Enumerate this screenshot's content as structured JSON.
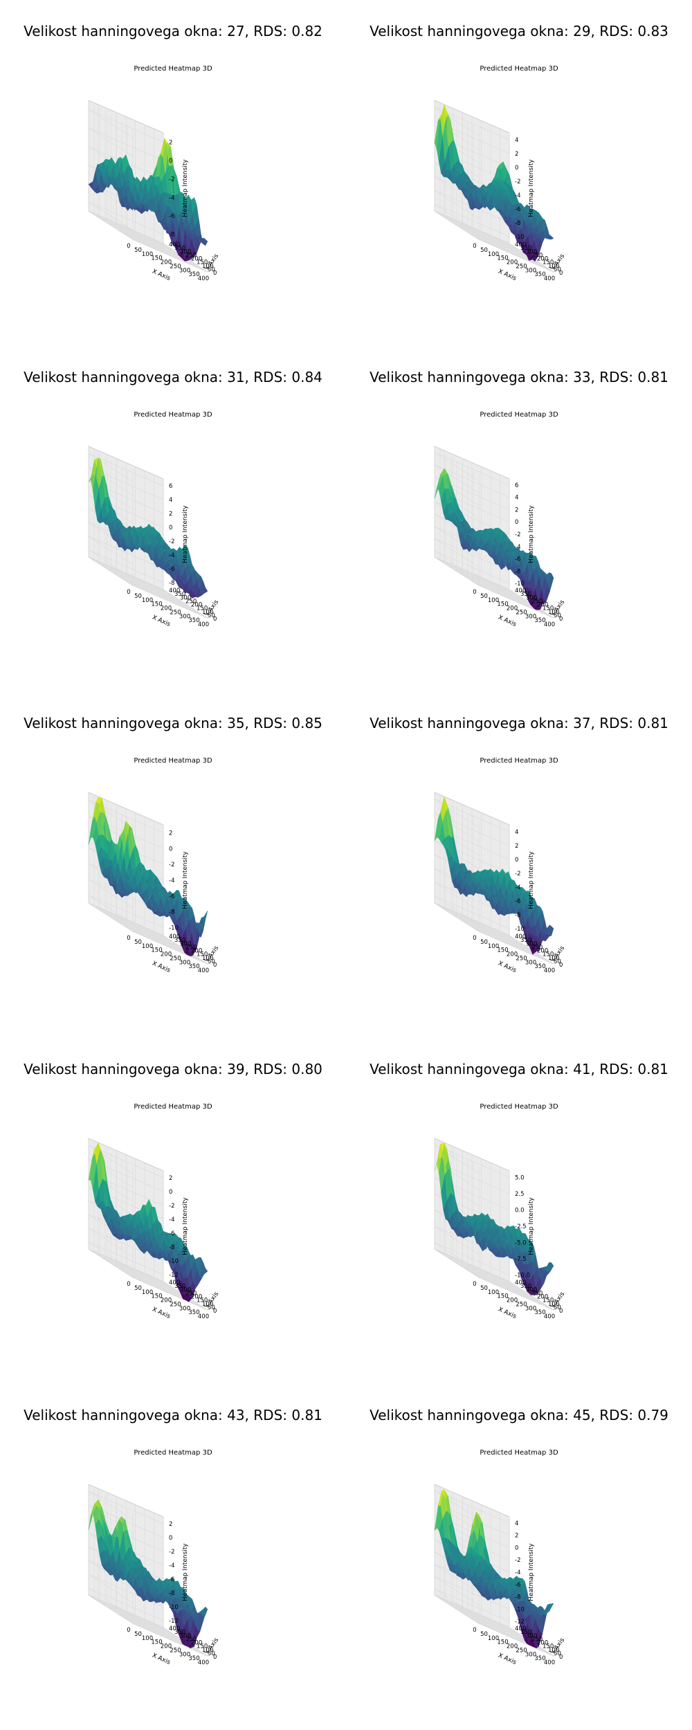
{
  "figure": {
    "panels": [
      {
        "title": "Velikost hanningovega okna: 27, RDS: 0.82"
      },
      {
        "title": "Velikost hanningovega okna: 29, RDS: 0.83"
      },
      {
        "title": "Velikost hanningovega okna: 31, RDS: 0.84"
      },
      {
        "title": "Velikost hanningovega okna: 33, RDS: 0.81"
      },
      {
        "title": "Velikost hanningovega okna: 35, RDS: 0.85"
      },
      {
        "title": "Velikost hanningovega okna: 37, RDS: 0.81"
      },
      {
        "title": "Velikost hanningovega okna: 39, RDS: 0.80"
      },
      {
        "title": "Velikost hanningovega okna: 41, RDS: 0.81"
      },
      {
        "title": "Velikost hanningovega okna: 43, RDS: 0.81"
      },
      {
        "title": "Velikost hanningovega okna: 45, RDS: 0.79"
      }
    ]
  },
  "colors": {
    "colormap": "viridis",
    "pane": "#f2f2f2",
    "grid": "#dcdcdc"
  },
  "chart_data": [
    {
      "type": "surface3d",
      "title": "Predicted Heatmap 3D",
      "xlabel": "X Axis",
      "ylabel": "Y Axis",
      "zlabel": "Heatmap Intensity",
      "xticks": [
        "0",
        "50",
        "100",
        "150",
        "200",
        "250",
        "300",
        "350",
        "400"
      ],
      "yticks": [
        "0",
        "50",
        "100",
        "150",
        "200",
        "250",
        "300",
        "350",
        "400"
      ],
      "zticks": [
        "-8",
        "-6",
        "-4",
        "-2",
        "0",
        "2"
      ],
      "zlim": [
        -9,
        3
      ],
      "peaks": [
        {
          "x": 300,
          "y": 200,
          "z": 2.5
        },
        {
          "x": 150,
          "y": 300,
          "z": -1
        }
      ]
    },
    {
      "type": "surface3d",
      "title": "Predicted Heatmap 3D",
      "xlabel": "X Axis",
      "ylabel": "Y Axis",
      "zlabel": "Heatmap Intensity",
      "xticks": [
        "0",
        "50",
        "100",
        "150",
        "200",
        "250",
        "300",
        "350",
        "400"
      ],
      "yticks": [
        "0",
        "50",
        "100",
        "150",
        "200",
        "250",
        "300",
        "350",
        "400"
      ],
      "zticks": [
        "-10",
        "-8",
        "-6",
        "-4",
        "-2",
        "0",
        "2",
        "4"
      ],
      "zlim": [
        -11,
        5
      ],
      "peaks": [
        {
          "x": 40,
          "y": 380,
          "z": 4.5
        },
        {
          "x": 300,
          "y": 300,
          "z": 0
        }
      ]
    },
    {
      "type": "surface3d",
      "title": "Predicted Heatmap 3D",
      "xlabel": "X Axis",
      "ylabel": "Y Axis",
      "zlabel": "Heatmap Intensity",
      "xticks": [
        "0",
        "50",
        "100",
        "150",
        "200",
        "250",
        "300",
        "350",
        "400"
      ],
      "yticks": [
        "0",
        "50",
        "100",
        "150",
        "200",
        "250",
        "300",
        "350",
        "400"
      ],
      "zticks": [
        "-8",
        "-6",
        "-4",
        "-2",
        "0",
        "2",
        "4",
        "6"
      ],
      "zlim": [
        -9,
        7
      ],
      "peaks": [
        {
          "x": 40,
          "y": 380,
          "z": 6
        },
        {
          "x": 250,
          "y": 250,
          "z": -1
        }
      ]
    },
    {
      "type": "surface3d",
      "title": "Predicted Heatmap 3D",
      "xlabel": "X Axis",
      "ylabel": "Y Axis",
      "zlabel": "Heatmap Intensity",
      "xticks": [
        "0",
        "50",
        "100",
        "150",
        "200",
        "250",
        "300",
        "350",
        "400"
      ],
      "yticks": [
        "0",
        "50",
        "100",
        "150",
        "200",
        "250",
        "300",
        "350",
        "400"
      ],
      "zticks": [
        "-10",
        "-8",
        "-6",
        "-4",
        "-2",
        "0",
        "2",
        "4",
        "6"
      ],
      "zlim": [
        -11,
        7
      ],
      "peaks": [
        {
          "x": 40,
          "y": 380,
          "z": 6
        },
        {
          "x": 300,
          "y": 250,
          "z": -2
        }
      ]
    },
    {
      "type": "surface3d",
      "title": "Predicted Heatmap 3D",
      "xlabel": "X Axis",
      "ylabel": "Y Axis",
      "zlabel": "Heatmap Intensity",
      "xticks": [
        "0",
        "50",
        "100",
        "150",
        "200",
        "250",
        "300",
        "350",
        "400"
      ],
      "yticks": [
        "0",
        "50",
        "100",
        "150",
        "200",
        "250",
        "300",
        "350",
        "400"
      ],
      "zticks": [
        "-10",
        "-8",
        "-6",
        "-4",
        "-2",
        "0",
        "2"
      ],
      "zlim": [
        -11,
        3
      ],
      "peaks": [
        {
          "x": 40,
          "y": 380,
          "z": 2.5
        },
        {
          "x": 150,
          "y": 300,
          "z": 1
        }
      ]
    },
    {
      "type": "surface3d",
      "title": "Predicted Heatmap 3D",
      "xlabel": "X Axis",
      "ylabel": "Y Axis",
      "zlabel": "Heatmap Intensity",
      "xticks": [
        "0",
        "50",
        "100",
        "150",
        "200",
        "250",
        "300",
        "350",
        "400"
      ],
      "yticks": [
        "0",
        "50",
        "100",
        "150",
        "200",
        "250",
        "300",
        "350",
        "400"
      ],
      "zticks": [
        "-10",
        "-8",
        "-6",
        "-4",
        "-2",
        "0",
        "2",
        "4"
      ],
      "zlim": [
        -11,
        5
      ],
      "peaks": [
        {
          "x": 40,
          "y": 380,
          "z": 4
        },
        {
          "x": 300,
          "y": 250,
          "z": -2
        }
      ]
    },
    {
      "type": "surface3d",
      "title": "Predicted Heatmap 3D",
      "xlabel": "X Axis",
      "ylabel": "Y Axis",
      "zlabel": "Heatmap Intensity",
      "xticks": [
        "0",
        "50",
        "100",
        "150",
        "200",
        "250",
        "300",
        "350",
        "400"
      ],
      "yticks": [
        "0",
        "50",
        "100",
        "150",
        "200",
        "250",
        "300",
        "350",
        "400"
      ],
      "zticks": [
        "-12",
        "-10",
        "-8",
        "-6",
        "-4",
        "-2",
        "0",
        "2"
      ],
      "zlim": [
        -13,
        3
      ],
      "peaks": [
        {
          "x": 40,
          "y": 380,
          "z": 2.5
        },
        {
          "x": 250,
          "y": 250,
          "z": -3
        }
      ]
    },
    {
      "type": "surface3d",
      "title": "Predicted Heatmap 3D",
      "xlabel": "X Axis",
      "ylabel": "Y Axis",
      "zlabel": "Heatmap Intensity",
      "xticks": [
        "0",
        "50",
        "100",
        "150",
        "200",
        "250",
        "300",
        "350",
        "400"
      ],
      "yticks": [
        "0",
        "50",
        "100",
        "150",
        "200",
        "250",
        "300",
        "350",
        "400"
      ],
      "zticks": [
        "-10.0",
        "-7.5",
        "-5.0",
        "-2.5",
        "0.0",
        "2.5",
        "5.0"
      ],
      "zlim": [
        -11,
        6
      ],
      "peaks": [
        {
          "x": 40,
          "y": 380,
          "z": 5
        },
        {
          "x": 300,
          "y": 250,
          "z": -2
        }
      ]
    },
    {
      "type": "surface3d",
      "title": "Predicted Heatmap 3D",
      "xlabel": "X Axis",
      "ylabel": "Y Axis",
      "zlabel": "Heatmap Intensity",
      "xticks": [
        "0",
        "50",
        "100",
        "150",
        "200",
        "250",
        "300",
        "350",
        "400"
      ],
      "yticks": [
        "0",
        "50",
        "100",
        "150",
        "200",
        "250",
        "300",
        "350",
        "400"
      ],
      "zticks": [
        "-12",
        "-10",
        "-8",
        "-6",
        "-4",
        "-2",
        "0",
        "2"
      ],
      "zlim": [
        -13,
        3
      ],
      "peaks": [
        {
          "x": 40,
          "y": 380,
          "z": 2.5
        },
        {
          "x": 150,
          "y": 350,
          "z": 1
        }
      ]
    },
    {
      "type": "surface3d",
      "title": "Predicted Heatmap 3D",
      "xlabel": "X Axis",
      "ylabel": "Y Axis",
      "zlabel": "Heatmap Intensity",
      "xticks": [
        "0",
        "50",
        "100",
        "150",
        "200",
        "250",
        "300",
        "350",
        "400"
      ],
      "yticks": [
        "0",
        "50",
        "100",
        "150",
        "200",
        "250",
        "300",
        "350",
        "400"
      ],
      "zticks": [
        "-12",
        "-10",
        "-8",
        "-6",
        "-4",
        "-2",
        "0",
        "2",
        "4"
      ],
      "zlim": [
        -13,
        5
      ],
      "peaks": [
        {
          "x": 40,
          "y": 380,
          "z": 4
        },
        {
          "x": 200,
          "y": 350,
          "z": 3
        }
      ]
    }
  ]
}
